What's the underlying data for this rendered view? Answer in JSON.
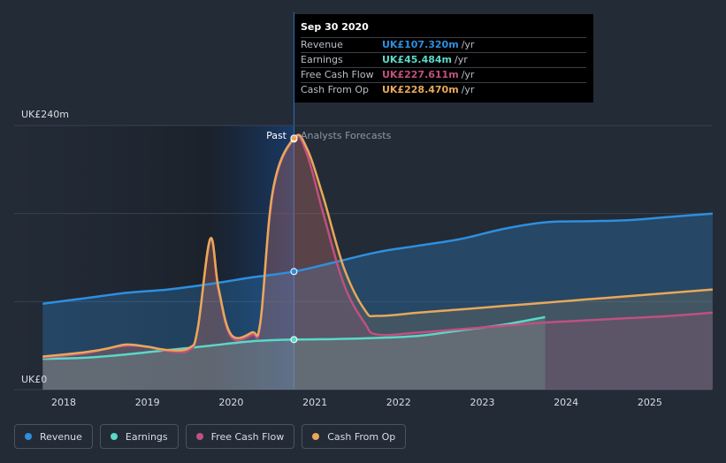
{
  "chart_data": {
    "type": "area",
    "y_label_top": "UK£240m",
    "y_label_bottom": "UK£0",
    "ylim": [
      0,
      240
    ],
    "x_ticks": [
      "2018",
      "2019",
      "2020",
      "2021",
      "2022",
      "2023",
      "2024",
      "2025"
    ],
    "past_label": "Past",
    "forecast_label": "Analysts Forecasts",
    "divider_x": 2020.75,
    "series": [
      {
        "name": "Revenue",
        "color": "#2e8fdf",
        "points": [
          [
            2017.75,
            78
          ],
          [
            2018.25,
            83
          ],
          [
            2018.75,
            88
          ],
          [
            2019.25,
            91
          ],
          [
            2019.75,
            96
          ],
          [
            2020.25,
            102
          ],
          [
            2020.75,
            107.32
          ],
          [
            2021.25,
            116
          ],
          [
            2021.75,
            125
          ],
          [
            2022.25,
            131
          ],
          [
            2022.75,
            137
          ],
          [
            2023.25,
            146
          ],
          [
            2023.75,
            152
          ],
          [
            2024.25,
            153
          ],
          [
            2024.75,
            154
          ],
          [
            2025.25,
            157
          ],
          [
            2025.75,
            160
          ]
        ]
      },
      {
        "name": "Earnings",
        "color": "#5ad8c8",
        "points": [
          [
            2017.75,
            28
          ],
          [
            2018.25,
            29
          ],
          [
            2018.75,
            32
          ],
          [
            2019.25,
            36
          ],
          [
            2019.75,
            40
          ],
          [
            2020.25,
            44
          ],
          [
            2020.75,
            45.484
          ],
          [
            2021.25,
            46
          ],
          [
            2021.75,
            47
          ],
          [
            2022.25,
            49
          ],
          [
            2022.75,
            54
          ],
          [
            2023.25,
            59
          ],
          [
            2023.75,
            66
          ]
        ]
      },
      {
        "name": "Free Cash Flow",
        "color": "#c0507f",
        "points": [
          [
            2017.75,
            29
          ],
          [
            2018.25,
            33
          ],
          [
            2018.5,
            37
          ],
          [
            2018.75,
            40
          ],
          [
            2019.0,
            39
          ],
          [
            2019.25,
            35
          ],
          [
            2019.5,
            36
          ],
          [
            2019.6,
            55
          ],
          [
            2019.75,
            136
          ],
          [
            2019.85,
            90
          ],
          [
            2020.0,
            48
          ],
          [
            2020.25,
            50
          ],
          [
            2020.35,
            60
          ],
          [
            2020.5,
            180
          ],
          [
            2020.75,
            227.611
          ],
          [
            2020.9,
            215
          ],
          [
            2021.1,
            160
          ],
          [
            2021.35,
            95
          ],
          [
            2021.6,
            60
          ],
          [
            2021.75,
            50
          ],
          [
            2022.25,
            52
          ],
          [
            2022.75,
            55
          ],
          [
            2023.25,
            58
          ],
          [
            2023.75,
            61
          ],
          [
            2024.25,
            63
          ],
          [
            2024.75,
            65
          ],
          [
            2025.25,
            67
          ],
          [
            2025.75,
            70
          ]
        ]
      },
      {
        "name": "Cash From Op",
        "color": "#e8a85a",
        "points": [
          [
            2017.75,
            30
          ],
          [
            2018.25,
            34
          ],
          [
            2018.5,
            37
          ],
          [
            2018.75,
            41
          ],
          [
            2019.0,
            39
          ],
          [
            2019.25,
            36
          ],
          [
            2019.5,
            38
          ],
          [
            2019.6,
            55
          ],
          [
            2019.75,
            137
          ],
          [
            2019.85,
            92
          ],
          [
            2020.0,
            50
          ],
          [
            2020.25,
            52
          ],
          [
            2020.35,
            62
          ],
          [
            2020.5,
            182
          ],
          [
            2020.75,
            228.47
          ],
          [
            2020.9,
            220
          ],
          [
            2021.1,
            175
          ],
          [
            2021.35,
            110
          ],
          [
            2021.6,
            72
          ],
          [
            2021.75,
            67
          ],
          [
            2022.25,
            70
          ],
          [
            2022.75,
            73
          ],
          [
            2023.25,
            76
          ],
          [
            2023.75,
            79
          ],
          [
            2024.25,
            82
          ],
          [
            2024.75,
            85
          ],
          [
            2025.25,
            88
          ],
          [
            2025.75,
            91
          ]
        ]
      }
    ]
  },
  "tooltip": {
    "date": "Sep 30 2020",
    "rows": [
      {
        "label": "Revenue",
        "value": "UK£107.320m",
        "unit": "/yr",
        "color": "#2e8fdf"
      },
      {
        "label": "Earnings",
        "value": "UK£45.484m",
        "unit": "/yr",
        "color": "#5ad8c8"
      },
      {
        "label": "Free Cash Flow",
        "value": "UK£227.611m",
        "unit": "/yr",
        "color": "#c0507f"
      },
      {
        "label": "Cash From Op",
        "value": "UK£228.470m",
        "unit": "/yr",
        "color": "#e8a85a"
      }
    ]
  },
  "legend": [
    {
      "label": "Revenue",
      "color": "#2e8fdf"
    },
    {
      "label": "Earnings",
      "color": "#5ad8c8"
    },
    {
      "label": "Free Cash Flow",
      "color": "#c0507f"
    },
    {
      "label": "Cash From Op",
      "color": "#e8a85a"
    }
  ]
}
